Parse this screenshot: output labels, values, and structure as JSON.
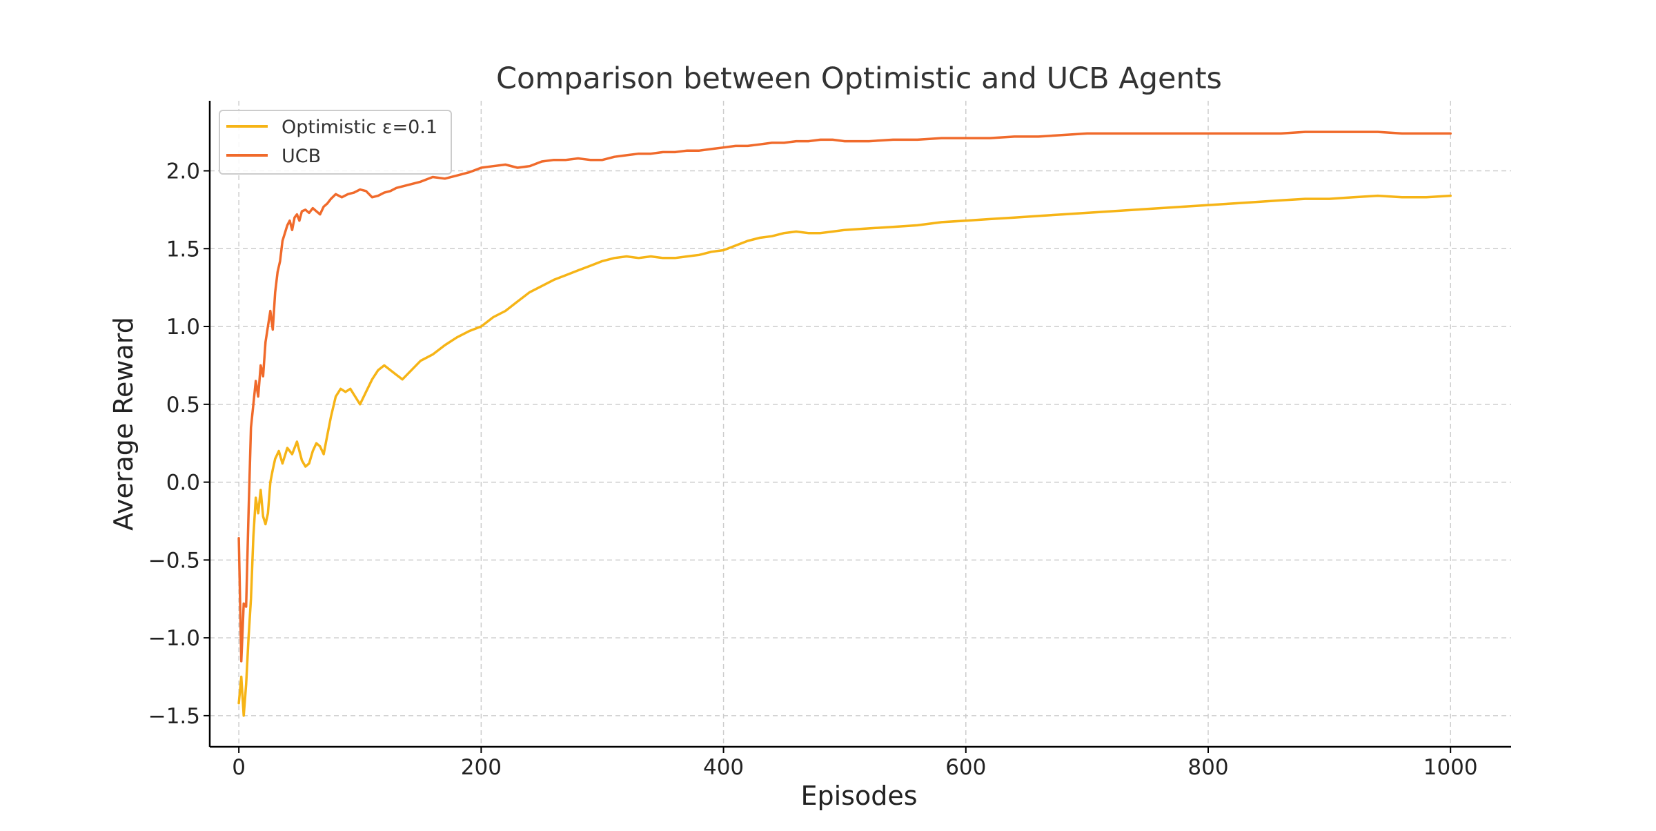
{
  "chart_data": {
    "type": "line",
    "title": "Comparison between Optimistic and UCB Agents",
    "xlabel": "Episodes",
    "ylabel": "Average Reward",
    "xlim": [
      -24,
      1050
    ],
    "ylim": [
      -1.7,
      2.45
    ],
    "xticks": [
      0,
      200,
      400,
      600,
      800,
      1000
    ],
    "xtick_labels": [
      "0",
      "200",
      "400",
      "600",
      "800",
      "1000"
    ],
    "yticks": [
      -1.5,
      -1.0,
      -0.5,
      0.0,
      0.5,
      1.0,
      1.5,
      2.0
    ],
    "ytick_labels": [
      "−1.5",
      "−1.0",
      "−0.5",
      "0.0",
      "0.5",
      "1.0",
      "1.5",
      "2.0"
    ],
    "grid": true,
    "legend_position": "upper-left",
    "series": [
      {
        "name": "Optimistic ε=0.1",
        "color": "#f6b416",
        "x": [
          0,
          2,
          4,
          6,
          8,
          10,
          12,
          14,
          16,
          18,
          20,
          22,
          24,
          26,
          28,
          30,
          33,
          36,
          40,
          44,
          48,
          52,
          55,
          58,
          61,
          64,
          67,
          70,
          73,
          76,
          80,
          84,
          88,
          92,
          96,
          100,
          105,
          110,
          115,
          120,
          125,
          130,
          135,
          140,
          145,
          150,
          160,
          170,
          180,
          190,
          200,
          210,
          220,
          230,
          240,
          250,
          260,
          270,
          280,
          290,
          300,
          310,
          320,
          330,
          340,
          350,
          360,
          370,
          380,
          390,
          400,
          410,
          420,
          430,
          440,
          450,
          460,
          470,
          480,
          490,
          500,
          520,
          540,
          560,
          580,
          600,
          620,
          640,
          660,
          680,
          700,
          720,
          740,
          760,
          780,
          800,
          820,
          840,
          860,
          880,
          900,
          920,
          940,
          960,
          980,
          1000
        ],
        "y": [
          -1.42,
          -1.25,
          -1.5,
          -1.3,
          -1.0,
          -0.75,
          -0.35,
          -0.1,
          -0.2,
          -0.05,
          -0.22,
          -0.27,
          -0.2,
          0.0,
          0.08,
          0.15,
          0.2,
          0.12,
          0.22,
          0.18,
          0.26,
          0.14,
          0.1,
          0.12,
          0.2,
          0.25,
          0.23,
          0.18,
          0.3,
          0.42,
          0.55,
          0.6,
          0.58,
          0.6,
          0.55,
          0.5,
          0.58,
          0.66,
          0.72,
          0.75,
          0.72,
          0.69,
          0.66,
          0.7,
          0.74,
          0.78,
          0.82,
          0.88,
          0.93,
          0.97,
          1.0,
          1.06,
          1.1,
          1.16,
          1.22,
          1.26,
          1.3,
          1.33,
          1.36,
          1.39,
          1.42,
          1.44,
          1.45,
          1.44,
          1.45,
          1.44,
          1.44,
          1.45,
          1.46,
          1.48,
          1.49,
          1.52,
          1.55,
          1.57,
          1.58,
          1.6,
          1.61,
          1.6,
          1.6,
          1.61,
          1.62,
          1.63,
          1.64,
          1.65,
          1.67,
          1.68,
          1.69,
          1.7,
          1.71,
          1.72,
          1.73,
          1.74,
          1.75,
          1.76,
          1.77,
          1.78,
          1.79,
          1.8,
          1.81,
          1.82,
          1.82,
          1.83,
          1.84,
          1.83,
          1.83,
          1.84
        ]
      },
      {
        "name": "UCB",
        "color": "#f06a2b",
        "x": [
          0,
          2,
          4,
          6,
          8,
          10,
          12,
          14,
          16,
          18,
          20,
          22,
          24,
          26,
          28,
          30,
          32,
          34,
          36,
          38,
          40,
          42,
          44,
          46,
          48,
          50,
          52,
          55,
          58,
          61,
          64,
          67,
          70,
          73,
          76,
          80,
          85,
          90,
          95,
          100,
          105,
          110,
          115,
          120,
          125,
          130,
          140,
          150,
          160,
          170,
          180,
          190,
          200,
          210,
          220,
          230,
          240,
          250,
          260,
          270,
          280,
          290,
          300,
          310,
          320,
          330,
          340,
          350,
          360,
          370,
          380,
          390,
          400,
          410,
          420,
          430,
          440,
          450,
          460,
          470,
          480,
          490,
          500,
          510,
          520,
          540,
          560,
          580,
          600,
          620,
          640,
          660,
          680,
          700,
          720,
          740,
          760,
          780,
          800,
          820,
          840,
          860,
          880,
          900,
          920,
          940,
          960,
          980,
          1000
        ],
        "y": [
          -0.36,
          -1.15,
          -0.78,
          -0.8,
          -0.2,
          0.35,
          0.5,
          0.65,
          0.55,
          0.75,
          0.68,
          0.9,
          1.0,
          1.1,
          0.98,
          1.22,
          1.35,
          1.42,
          1.55,
          1.6,
          1.65,
          1.68,
          1.62,
          1.7,
          1.72,
          1.68,
          1.74,
          1.75,
          1.73,
          1.76,
          1.74,
          1.72,
          1.77,
          1.79,
          1.82,
          1.85,
          1.83,
          1.85,
          1.86,
          1.88,
          1.87,
          1.83,
          1.84,
          1.86,
          1.87,
          1.89,
          1.91,
          1.93,
          1.96,
          1.95,
          1.97,
          1.99,
          2.02,
          2.03,
          2.04,
          2.02,
          2.03,
          2.06,
          2.07,
          2.07,
          2.08,
          2.07,
          2.07,
          2.09,
          2.1,
          2.11,
          2.11,
          2.12,
          2.12,
          2.13,
          2.13,
          2.14,
          2.15,
          2.16,
          2.16,
          2.17,
          2.18,
          2.18,
          2.19,
          2.19,
          2.2,
          2.2,
          2.19,
          2.19,
          2.19,
          2.2,
          2.2,
          2.21,
          2.21,
          2.21,
          2.22,
          2.22,
          2.23,
          2.24,
          2.24,
          2.24,
          2.24,
          2.24,
          2.24,
          2.24,
          2.24,
          2.24,
          2.25,
          2.25,
          2.25,
          2.25,
          2.24,
          2.24,
          2.24
        ]
      }
    ]
  }
}
